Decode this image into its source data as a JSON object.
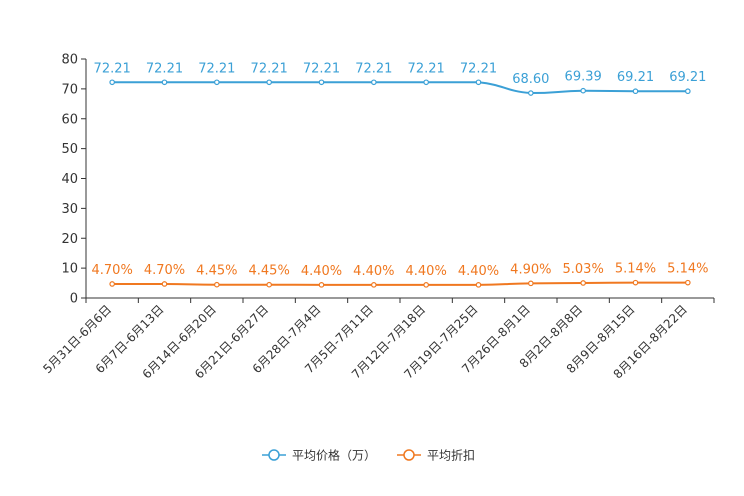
{
  "chart_data": {
    "type": "line",
    "categories": [
      "5月31日-6月6日",
      "6月7日-6月13日",
      "6月14日-6月20日",
      "6月21日-6月27日",
      "6月28日-7月4日",
      "7月5日-7月11日",
      "7月12日-7月18日",
      "7月19日-7月25日",
      "7月26日-8月1日",
      "8月2日-8月8日",
      "8月9日-8月15日",
      "8月16日-8月22日"
    ],
    "series": [
      {
        "name": "平均价格（万）",
        "color": "#3ba0d6",
        "values": [
          72.21,
          72.21,
          72.21,
          72.21,
          72.21,
          72.21,
          72.21,
          72.21,
          68.6,
          69.39,
          69.21,
          69.21
        ],
        "labels": [
          "72.21",
          "72.21",
          "72.21",
          "72.21",
          "72.21",
          "72.21",
          "72.21",
          "72.21",
          "68.60",
          "69.39",
          "69.21",
          "69.21"
        ]
      },
      {
        "name": "平均折扣",
        "color": "#f07820",
        "values": [
          4.7,
          4.7,
          4.45,
          4.45,
          4.4,
          4.4,
          4.4,
          4.4,
          4.9,
          5.03,
          5.14,
          5.14
        ],
        "labels": [
          "4.70%",
          "4.70%",
          "4.45%",
          "4.45%",
          "4.40%",
          "4.40%",
          "4.40%",
          "4.40%",
          "4.90%",
          "5.03%",
          "5.14%",
          "5.14%"
        ]
      }
    ],
    "yticks": [
      "0",
      "10",
      "20",
      "30",
      "40",
      "50",
      "60",
      "70",
      "80"
    ],
    "ylim": [
      0,
      80
    ],
    "title": "",
    "xlabel": "",
    "ylabel": "",
    "legend_position": "bottom-center"
  }
}
